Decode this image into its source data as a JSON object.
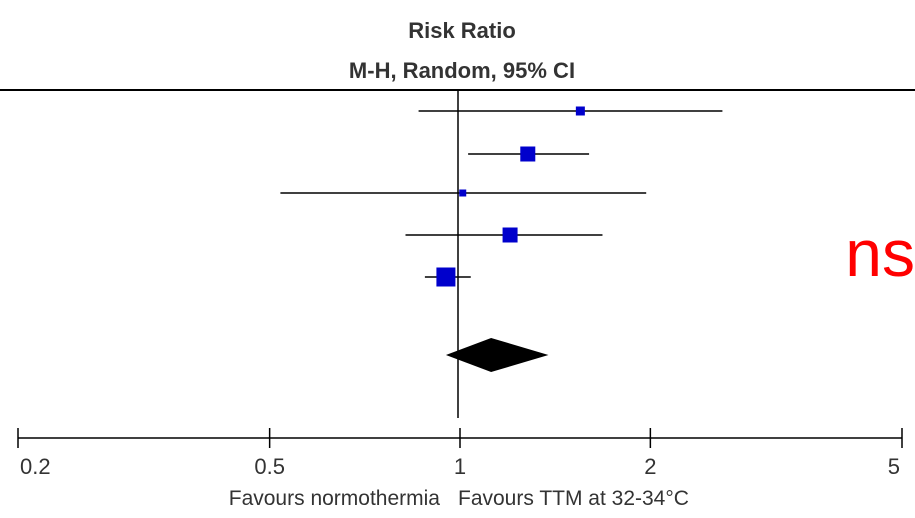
{
  "header": {
    "title": "Risk Ratio",
    "subtitle": "M-H, Random, 95% CI"
  },
  "annotation": {
    "text": "ns",
    "color": "#ff0000"
  },
  "favours": {
    "left": "Favours normothermia",
    "right": "Favours TTM at 32-34°C"
  },
  "chart_data": {
    "type": "forest",
    "scale": "log",
    "xlim": [
      0.2,
      5
    ],
    "null_value": 1,
    "ticks": [
      {
        "value": 0.2,
        "label": "0.2"
      },
      {
        "value": 0.5,
        "label": "0.5"
      },
      {
        "value": 1,
        "label": "1"
      },
      {
        "value": 2,
        "label": "2"
      },
      {
        "value": 5,
        "label": "5"
      }
    ],
    "studies": [
      {
        "rr": 1.55,
        "ci_low": 0.86,
        "ci_high": 2.6,
        "weight": "small"
      },
      {
        "rr": 1.28,
        "ci_low": 1.03,
        "ci_high": 1.6,
        "weight": "medium"
      },
      {
        "rr": 1.01,
        "ci_low": 0.52,
        "ci_high": 1.97,
        "weight": "tiny"
      },
      {
        "rr": 1.2,
        "ci_low": 0.82,
        "ci_high": 1.68,
        "weight": "medium"
      },
      {
        "rr": 0.95,
        "ci_low": 0.88,
        "ci_high": 1.04,
        "weight": "large"
      }
    ],
    "pooled": {
      "rr": 1.12,
      "ci_low": 0.95,
      "ci_high": 1.38
    },
    "colors": {
      "marker": "#0000cc",
      "line": "#000000",
      "diamond": "#000000"
    }
  }
}
